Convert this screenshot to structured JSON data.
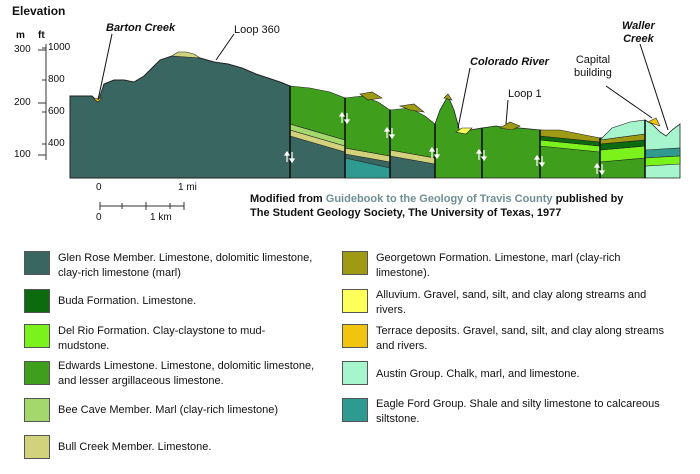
{
  "figure": {
    "elevation_title": "Elevation",
    "unit_m": "m",
    "unit_ft": "ft",
    "m_ticks": [
      "300",
      "200",
      "100"
    ],
    "ft_ticks": [
      "1000",
      "800",
      "600",
      "400"
    ],
    "place_labels": {
      "barton_creek": "Barton Creek",
      "loop_360": "Loop 360",
      "colorado_river": "Colorado River",
      "loop_1": "Loop 1",
      "capital_building": "Capital\nbuilding",
      "waller_creek": "Waller\nCreek"
    },
    "scale": {
      "mi_zero": "0",
      "mi_one": "1 mi",
      "km_zero": "0",
      "km_one": "1 km"
    },
    "credit": {
      "prefix": "Modified from ",
      "link_text": "Guidebook to the Geology of Travis County",
      "suffix": " published by",
      "line2": "The Student Geology Society, The University of Texas, 1977"
    }
  },
  "colors": {
    "glen_rose": "#3a6662",
    "buda": "#0d6b0f",
    "del_rio": "#7cf21c",
    "edwards": "#3f9f1c",
    "bee_cave": "#a4d86c",
    "bull_creek": "#d2d27c",
    "georgetown": "#9f9a13",
    "alluvium": "#ffff5a",
    "terrace": "#f1c40f",
    "austin": "#a6f5cc",
    "eagle_ford": "#2f9a90"
  },
  "legend": [
    {
      "key": "glen_rose",
      "text": "Glen Rose Member. Limestone, dolomitic limestone, clay-rich limestone (marl)"
    },
    {
      "key": "buda",
      "text": "Buda Formation. Limestone."
    },
    {
      "key": "del_rio",
      "text": "Del Rio Formation. Clay-claystone to mud-mudstone."
    },
    {
      "key": "edwards",
      "text": "Edwards Limestone. Limestone, dolomitic limestone, and lesser argillaceous limestone."
    },
    {
      "key": "bee_cave",
      "text": "Bee Cave Member. Marl (clay-rich limestone)"
    },
    {
      "key": "bull_creek",
      "text": "Bull Creek Member. Limestone."
    },
    {
      "key": "georgetown",
      "text": "Georgetown Formation. Limestone, marl (clay-rich limestone)."
    },
    {
      "key": "alluvium",
      "text": "Alluvium. Gravel, sand, silt, and clay along streams and rivers."
    },
    {
      "key": "terrace",
      "text": "Terrace deposits. Gravel, sand, silt, and clay along streams and rivers."
    },
    {
      "key": "austin",
      "text": "Austin Group. Chalk, marl, and limestone."
    },
    {
      "key": "eagle_ford",
      "text": "Eagle Ford Group. Shale and silty limestone to calcareous siltstone."
    }
  ]
}
